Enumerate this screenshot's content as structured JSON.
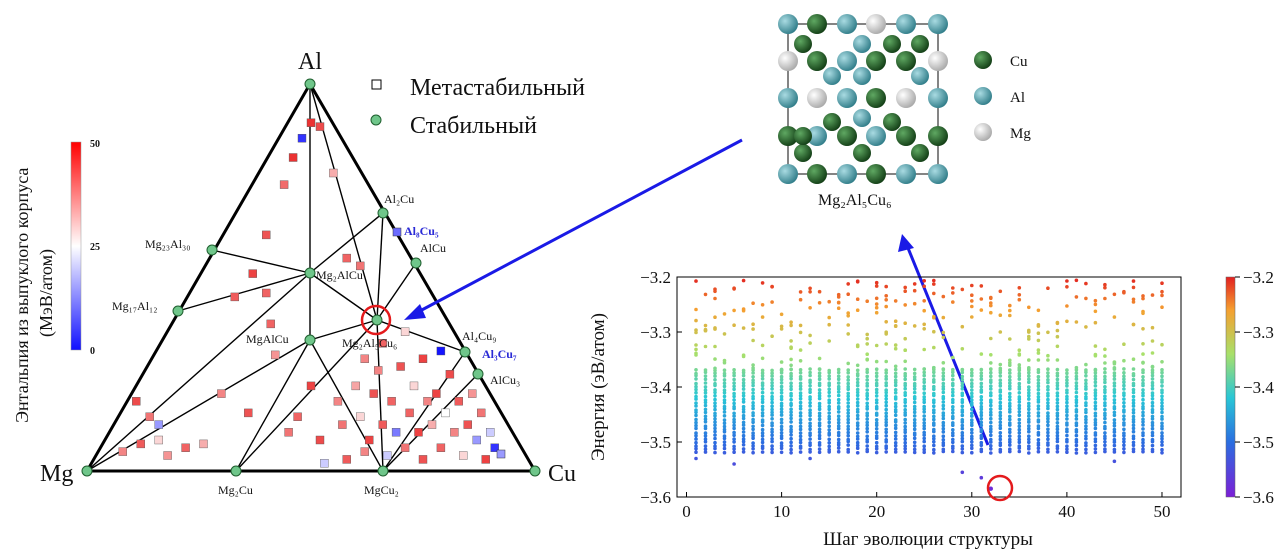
{
  "chart_data": [
    {
      "type": "scatter",
      "kind": "ternary-phase-diagram",
      "vertices": [
        "Al",
        "Mg",
        "Cu"
      ],
      "legend": {
        "metastable": "Метастабильный",
        "stable": "Стабильный",
        "placement": "top-right"
      },
      "colorbar": {
        "label": "Энтальпия из выпуклого корпуса (МэВ/атом)",
        "min": 0,
        "mid": 25,
        "max": 50,
        "ticks": [
          "50",
          "25",
          "0"
        ],
        "colors": [
          "#1010ff",
          "#ffffff",
          "#ff0000"
        ]
      },
      "stable_phases": [
        {
          "label": "Al",
          "sub": ""
        },
        {
          "label": "Mg",
          "sub": ""
        },
        {
          "label": "Cu",
          "sub": ""
        },
        {
          "label": "Al₂Cu",
          "sub": ""
        },
        {
          "label": "AlCu",
          "sub": ""
        },
        {
          "label": "Al₄Cu₉",
          "sub": ""
        },
        {
          "label": "AlCu₃",
          "sub": ""
        },
        {
          "label": "Mg₂₃Al₃₀",
          "sub": ""
        },
        {
          "label": "Mg₁₇Al₁₂",
          "sub": ""
        },
        {
          "label": "Mg₂AlCu",
          "sub": ""
        },
        {
          "label": "MgAlCu",
          "sub": ""
        },
        {
          "label": "Mg₂Al₅Cu₆",
          "sub": ""
        },
        {
          "label": "Mg₂Cu",
          "sub": ""
        },
        {
          "label": "MgCu₂",
          "sub": ""
        }
      ],
      "highlighted_metastable": [
        {
          "label": "Al₈Cu₅",
          "color": "#2a2ad6"
        },
        {
          "label": "Al₃Cu₇",
          "color": "#2a2ad6"
        }
      ],
      "highlighted_phase": "Mg₂Al₅Cu₆",
      "metastable_points": [
        {
          "x": 0.08,
          "y": 0.05,
          "e": 40
        },
        {
          "x": 0.12,
          "y": 0.07,
          "e": 45
        },
        {
          "x": 0.16,
          "y": 0.08,
          "e": 30
        },
        {
          "x": 0.18,
          "y": 0.04,
          "e": 38
        },
        {
          "x": 0.22,
          "y": 0.06,
          "e": 44
        },
        {
          "x": 0.26,
          "y": 0.07,
          "e": 35
        },
        {
          "x": 0.11,
          "y": 0.18,
          "e": 47
        },
        {
          "x": 0.14,
          "y": 0.14,
          "e": 42
        },
        {
          "x": 0.16,
          "y": 0.12,
          "e": 15
        },
        {
          "x": 0.3,
          "y": 0.2,
          "e": 40
        },
        {
          "x": 0.33,
          "y": 0.45,
          "e": 45
        },
        {
          "x": 0.37,
          "y": 0.51,
          "e": 48
        },
        {
          "x": 0.4,
          "y": 0.61,
          "e": 46
        },
        {
          "x": 0.44,
          "y": 0.74,
          "e": 43
        },
        {
          "x": 0.46,
          "y": 0.81,
          "e": 50
        },
        {
          "x": 0.48,
          "y": 0.86,
          "e": 5
        },
        {
          "x": 0.5,
          "y": 0.9,
          "e": 50
        },
        {
          "x": 0.52,
          "y": 0.89,
          "e": 47
        },
        {
          "x": 0.55,
          "y": 0.77,
          "e": 35
        },
        {
          "x": 0.4,
          "y": 0.46,
          "e": 44
        },
        {
          "x": 0.41,
          "y": 0.38,
          "e": 44
        },
        {
          "x": 0.42,
          "y": 0.3,
          "e": 38
        },
        {
          "x": 0.56,
          "y": 0.18,
          "e": 40
        },
        {
          "x": 0.57,
          "y": 0.12,
          "e": 42
        },
        {
          "x": 0.6,
          "y": 0.22,
          "e": 36
        },
        {
          "x": 0.61,
          "y": 0.14,
          "e": 30
        },
        {
          "x": 0.63,
          "y": 0.08,
          "e": 48
        },
        {
          "x": 0.64,
          "y": 0.2,
          "e": 46
        },
        {
          "x": 0.65,
          "y": 0.26,
          "e": 40
        },
        {
          "x": 0.66,
          "y": 0.12,
          "e": 45
        },
        {
          "x": 0.67,
          "y": 0.04,
          "e": 20
        },
        {
          "x": 0.68,
          "y": 0.18,
          "e": 44
        },
        {
          "x": 0.69,
          "y": 0.1,
          "e": 12
        },
        {
          "x": 0.7,
          "y": 0.27,
          "e": 46
        },
        {
          "x": 0.71,
          "y": 0.06,
          "e": 42
        },
        {
          "x": 0.72,
          "y": 0.15,
          "e": 44
        },
        {
          "x": 0.73,
          "y": 0.22,
          "e": 30
        },
        {
          "x": 0.74,
          "y": 0.1,
          "e": 48
        },
        {
          "x": 0.75,
          "y": 0.03,
          "e": 46
        },
        {
          "x": 0.76,
          "y": 0.18,
          "e": 40
        },
        {
          "x": 0.77,
          "y": 0.12,
          "e": 35
        },
        {
          "x": 0.78,
          "y": 0.2,
          "e": 48
        },
        {
          "x": 0.79,
          "y": 0.06,
          "e": 44
        },
        {
          "x": 0.8,
          "y": 0.15,
          "e": 25
        },
        {
          "x": 0.81,
          "y": 0.25,
          "e": 47
        },
        {
          "x": 0.82,
          "y": 0.1,
          "e": 40
        },
        {
          "x": 0.83,
          "y": 0.18,
          "e": 45
        },
        {
          "x": 0.84,
          "y": 0.04,
          "e": 30
        },
        {
          "x": 0.85,
          "y": 0.12,
          "e": 46
        },
        {
          "x": 0.86,
          "y": 0.2,
          "e": 38
        },
        {
          "x": 0.87,
          "y": 0.08,
          "e": 15
        },
        {
          "x": 0.88,
          "y": 0.15,
          "e": 42
        },
        {
          "x": 0.89,
          "y": 0.03,
          "e": 48
        },
        {
          "x": 0.9,
          "y": 0.1,
          "e": 20
        },
        {
          "x": 0.91,
          "y": 0.06,
          "e": 5
        },
        {
          "x": 0.58,
          "y": 0.03,
          "e": 45
        },
        {
          "x": 0.62,
          "y": 0.05,
          "e": 40
        },
        {
          "x": 0.52,
          "y": 0.08,
          "e": 47
        },
        {
          "x": 0.47,
          "y": 0.14,
          "e": 44
        },
        {
          "x": 0.5,
          "y": 0.22,
          "e": 48
        },
        {
          "x": 0.45,
          "y": 0.1,
          "e": 42
        },
        {
          "x": 0.53,
          "y": 0.02,
          "e": 20
        },
        {
          "x": 0.36,
          "y": 0.15,
          "e": 46
        },
        {
          "x": 0.62,
          "y": 0.29,
          "e": 40
        },
        {
          "x": 0.66,
          "y": 0.33,
          "e": 44
        },
        {
          "x": 0.71,
          "y": 0.36,
          "e": 30
        },
        {
          "x": 0.75,
          "y": 0.29,
          "e": 48
        },
        {
          "x": 0.79,
          "y": 0.31,
          "e": 2
        },
        {
          "x": 0.58,
          "y": 0.55,
          "e": 44
        },
        {
          "x": 0.61,
          "y": 0.53,
          "e": 42
        }
      ]
    },
    {
      "type": "scatter",
      "title": "",
      "xlabel": "Шаг эволюции структуры",
      "ylabel": "Энергия (эВ/атом)",
      "xlim": [
        -1,
        52
      ],
      "ylim": [
        -3.6,
        -3.2
      ],
      "xticks": [
        "0",
        "10",
        "20",
        "30",
        "40",
        "50"
      ],
      "yticks": [
        "-3.2",
        "-3.3",
        "-3.4",
        "-3.5",
        "-3.6"
      ],
      "colorbar": {
        "min": -3.6,
        "max": -3.2,
        "ticks": [
          "-3.2",
          "-3.3",
          "-3.4",
          "-3.5",
          "-3.6"
        ],
        "colors": [
          "#7b1fd6",
          "#2a6ee0",
          "#29c6d6",
          "#a8e06a",
          "#f5a030",
          "#e22020"
        ]
      },
      "band": {
        "steps_from": 1,
        "steps_to": 50,
        "energy_min": -3.52,
        "energy_max_dense": -3.37
      },
      "lowest_point": {
        "step": 32,
        "energy": -3.585
      },
      "outliers": [
        {
          "step": 5,
          "energy": -3.54
        },
        {
          "step": 13,
          "energy": -3.53
        },
        {
          "step": 29,
          "energy": -3.555
        },
        {
          "step": 31,
          "energy": -3.565
        },
        {
          "step": 1,
          "energy": -3.53
        },
        {
          "step": 45,
          "energy": -3.535
        }
      ]
    }
  ],
  "crystal": {
    "label": "Mg₂Al₅Cu₆",
    "legend": [
      {
        "element": "Cu",
        "color": "#1e5c22"
      },
      {
        "element": "Al",
        "color": "#4a9aa6"
      },
      {
        "element": "Mg",
        "color": "#dcdcdc"
      }
    ]
  },
  "ternary_labels": {
    "vertex_al": "Al",
    "vertex_mg": "Mg",
    "vertex_cu": "Cu"
  }
}
